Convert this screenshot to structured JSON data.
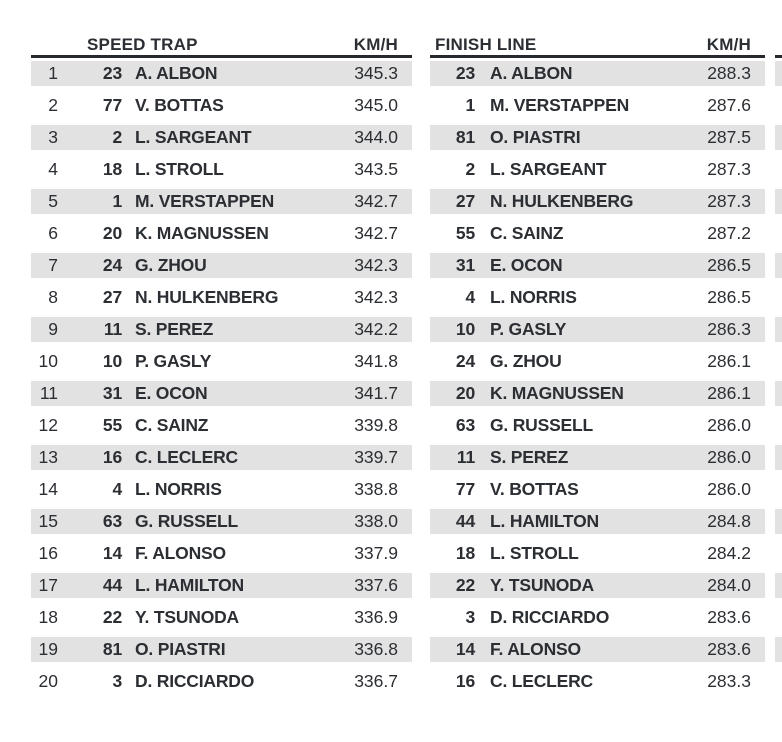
{
  "colors": {
    "text": "#2b2e33",
    "rule": "#26292e",
    "row_shade": "#e2e2e2",
    "background": "#ffffff"
  },
  "chart_data": [
    {
      "type": "table",
      "title": "SPEED TRAP",
      "unit_label": "KM/H",
      "columns": [
        "rank",
        "car_number",
        "driver",
        "speed_kmh"
      ],
      "rows": [
        [
          1,
          23,
          "A. ALBON",
          "345.3"
        ],
        [
          2,
          77,
          "V. BOTTAS",
          "345.0"
        ],
        [
          3,
          2,
          "L. SARGEANT",
          "344.0"
        ],
        [
          4,
          18,
          "L. STROLL",
          "343.5"
        ],
        [
          5,
          1,
          "M. VERSTAPPEN",
          "342.7"
        ],
        [
          6,
          20,
          "K. MAGNUSSEN",
          "342.7"
        ],
        [
          7,
          24,
          "G. ZHOU",
          "342.3"
        ],
        [
          8,
          27,
          "N. HULKENBERG",
          "342.3"
        ],
        [
          9,
          11,
          "S. PEREZ",
          "342.2"
        ],
        [
          10,
          10,
          "P. GASLY",
          "341.8"
        ],
        [
          11,
          31,
          "E. OCON",
          "341.7"
        ],
        [
          12,
          55,
          "C. SAINZ",
          "339.8"
        ],
        [
          13,
          16,
          "C. LECLERC",
          "339.7"
        ],
        [
          14,
          4,
          "L. NORRIS",
          "338.8"
        ],
        [
          15,
          63,
          "G. RUSSELL",
          "338.0"
        ],
        [
          16,
          14,
          "F. ALONSO",
          "337.9"
        ],
        [
          17,
          44,
          "L. HAMILTON",
          "337.6"
        ],
        [
          18,
          22,
          "Y. TSUNODA",
          "336.9"
        ],
        [
          19,
          81,
          "O. PIASTRI",
          "336.8"
        ],
        [
          20,
          3,
          "D. RICCIARDO",
          "336.7"
        ]
      ]
    },
    {
      "type": "table",
      "title": "FINISH LINE",
      "unit_label": "KM/H",
      "columns": [
        "car_number",
        "driver",
        "speed_kmh"
      ],
      "rows": [
        [
          23,
          "A. ALBON",
          "288.3"
        ],
        [
          1,
          "M. VERSTAPPEN",
          "287.6"
        ],
        [
          81,
          "O. PIASTRI",
          "287.5"
        ],
        [
          2,
          "L. SARGEANT",
          "287.3"
        ],
        [
          27,
          "N. HULKENBERG",
          "287.3"
        ],
        [
          55,
          "C. SAINZ",
          "287.2"
        ],
        [
          31,
          "E. OCON",
          "286.5"
        ],
        [
          4,
          "L. NORRIS",
          "286.5"
        ],
        [
          10,
          "P. GASLY",
          "286.3"
        ],
        [
          24,
          "G. ZHOU",
          "286.1"
        ],
        [
          20,
          "K. MAGNUSSEN",
          "286.1"
        ],
        [
          63,
          "G. RUSSELL",
          "286.0"
        ],
        [
          11,
          "S. PEREZ",
          "286.0"
        ],
        [
          77,
          "V. BOTTAS",
          "286.0"
        ],
        [
          44,
          "L. HAMILTON",
          "284.8"
        ],
        [
          18,
          "L. STROLL",
          "284.2"
        ],
        [
          22,
          "Y. TSUNODA",
          "284.0"
        ],
        [
          3,
          "D. RICCIARDO",
          "283.6"
        ],
        [
          14,
          "F. ALONSO",
          "283.6"
        ],
        [
          16,
          "C. LECLERC",
          "283.3"
        ]
      ]
    }
  ]
}
